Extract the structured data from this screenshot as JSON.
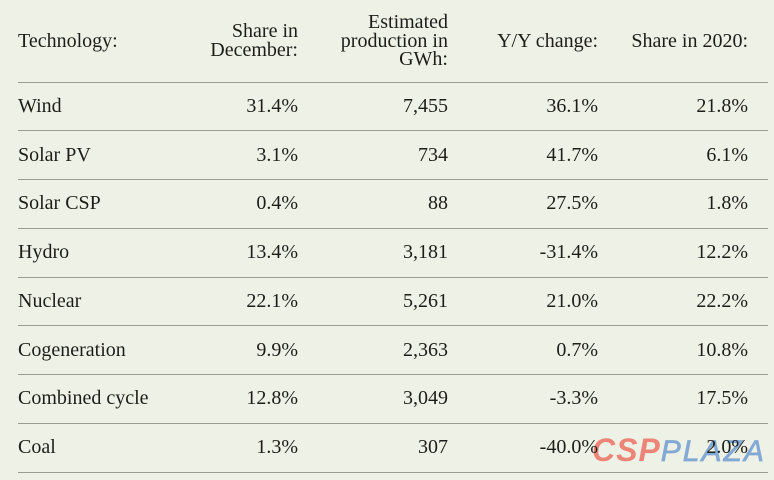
{
  "table": {
    "columns": {
      "technology": "Technology:",
      "share_december": "Share in December:",
      "production_gwh": "Estimated production in GWh:",
      "yy_change": "Y/Y change:",
      "share_2020": "Share in 2020:"
    },
    "rows": [
      {
        "technology": "Wind",
        "share_december": "31.4%",
        "production_gwh": "7,455",
        "yy_change": "36.1%",
        "share_2020": "21.8%"
      },
      {
        "technology": "Solar PV",
        "share_december": "3.1%",
        "production_gwh": "734",
        "yy_change": "41.7%",
        "share_2020": "6.1%"
      },
      {
        "technology": "Solar CSP",
        "share_december": "0.4%",
        "production_gwh": "88",
        "yy_change": "27.5%",
        "share_2020": "1.8%"
      },
      {
        "technology": "Hydro",
        "share_december": "13.4%",
        "production_gwh": "3,181",
        "yy_change": "-31.4%",
        "share_2020": "12.2%"
      },
      {
        "technology": "Nuclear",
        "share_december": "22.1%",
        "production_gwh": "5,261",
        "yy_change": "21.0%",
        "share_2020": "22.2%"
      },
      {
        "technology": "Cogeneration",
        "share_december": "9.9%",
        "production_gwh": "2,363",
        "yy_change": "0.7%",
        "share_2020": "10.8%"
      },
      {
        "technology": "Combined cycle",
        "share_december": "12.8%",
        "production_gwh": "3,049",
        "yy_change": "-3.3%",
        "share_2020": "17.5%"
      },
      {
        "technology": "Coal",
        "share_december": "1.3%",
        "production_gwh": "307",
        "yy_change": "-40.0%",
        "share_2020": "2.0%"
      }
    ]
  },
  "watermark": {
    "csp": "CSP",
    "plaza": "PLAZA",
    "csp_color": "#ed8478",
    "plaza_color": "#83a9d4"
  },
  "colors": {
    "background": "#eef2e6",
    "row_line": "#9a9e92",
    "text": "#1d1e19"
  }
}
